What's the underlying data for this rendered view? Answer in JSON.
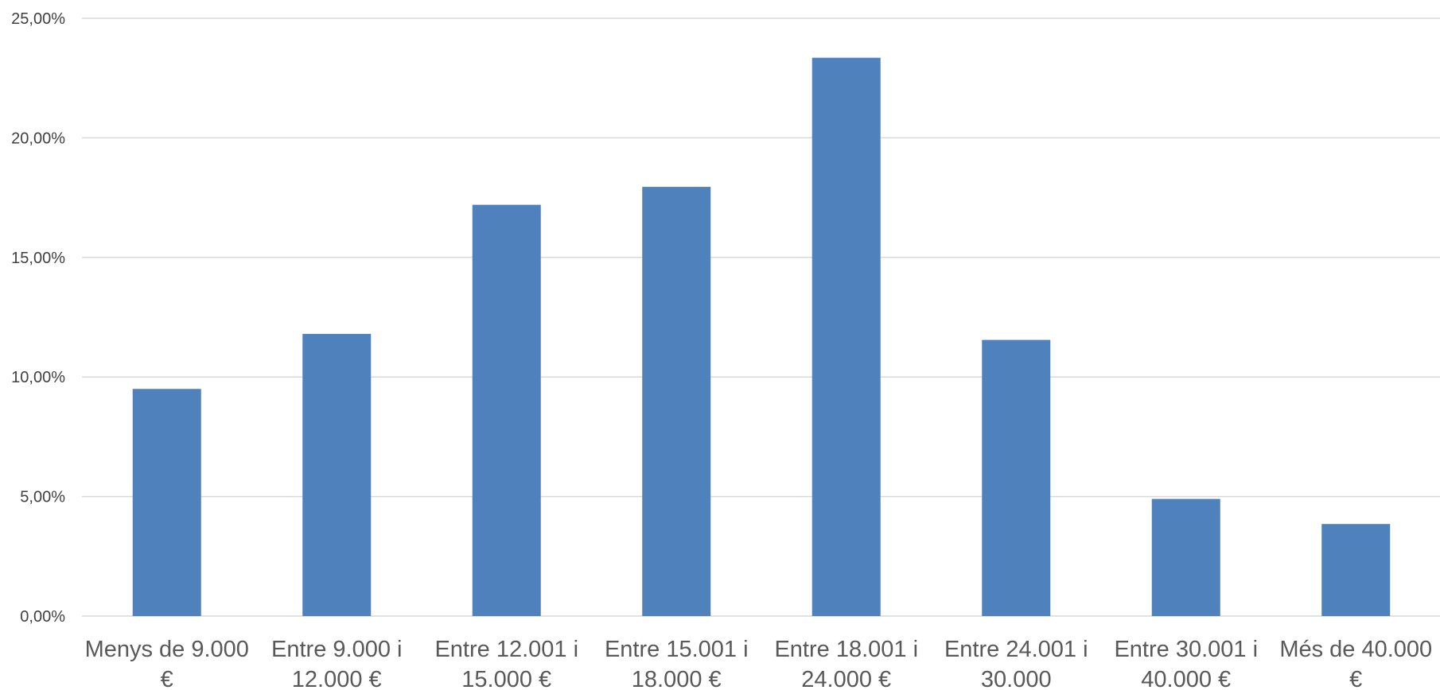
{
  "chart_data": {
    "type": "bar",
    "title": "",
    "xlabel": "",
    "ylabel": "",
    "categories": [
      [
        "Menys de 9.000",
        "€"
      ],
      [
        "Entre 9.000 i",
        "12.000 €"
      ],
      [
        "Entre 12.001 i",
        "15.000 €"
      ],
      [
        "Entre 15.001 i",
        "18.000 €"
      ],
      [
        "Entre 18.001 i",
        "24.000 €"
      ],
      [
        "Entre 24.001 i",
        "30.000"
      ],
      [
        "Entre 30.001 i",
        "40.000 €"
      ],
      [
        "Més de 40.000",
        "€"
      ]
    ],
    "values": [
      9.5,
      11.8,
      17.2,
      17.95,
      23.35,
      11.55,
      4.9,
      3.85
    ],
    "ylim": [
      0,
      25
    ],
    "yticks": [
      0,
      5,
      10,
      15,
      20,
      25
    ],
    "ytick_labels": [
      "0,00%",
      "5,00%",
      "10,00%",
      "15,00%",
      "20,00%",
      "25,00%"
    ],
    "grid": true,
    "legend": "none",
    "bar_color": "#4f81bd"
  }
}
